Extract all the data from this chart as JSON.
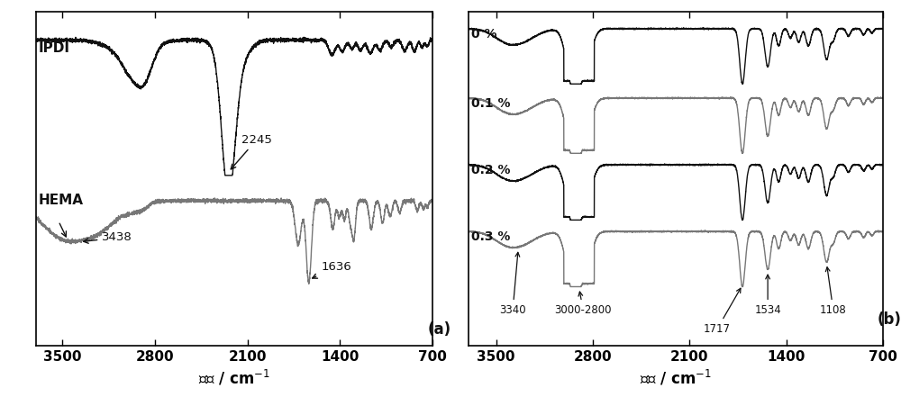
{
  "xlabel": "波数 / cm$^{-1}$",
  "panel_a_label": "(a)",
  "panel_b_label": "(b)",
  "ipdi_label": "IPDI",
  "hema_label": "HEMA",
  "percent_labels": [
    "0 %",
    "0.1 %",
    "0.2 %",
    "0.3 %"
  ],
  "color_black": "#111111",
  "color_gray": "#777777",
  "xticks_a": [
    3500,
    2800,
    2100,
    1400,
    700
  ],
  "xticks_b": [
    3500,
    2800,
    2100,
    1400,
    700
  ]
}
